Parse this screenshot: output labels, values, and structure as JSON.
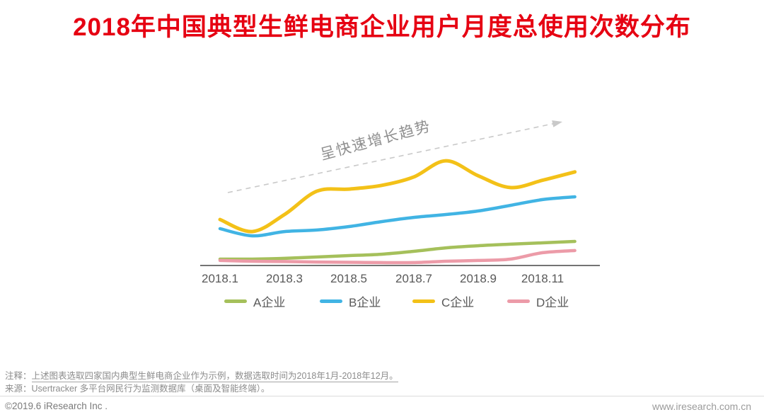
{
  "page": {
    "title": "2018年中国典型生鲜电商企业用户月度总使用次数分布",
    "title_color": "#e60012"
  },
  "chart_data": {
    "type": "line",
    "title": "2018年中国典型生鲜电商企业用户月度总使用次数分布",
    "xlabel": "",
    "ylabel": "",
    "x": [
      "2018.1",
      "2018.2",
      "2018.3",
      "2018.4",
      "2018.5",
      "2018.6",
      "2018.7",
      "2018.8",
      "2018.9",
      "2018.10",
      "2018.11",
      "2018.12"
    ],
    "x_tick_labels": [
      "2018.1",
      "2018.3",
      "2018.5",
      "2018.7",
      "2018.9",
      "2018.11"
    ],
    "ylim": [
      0,
      100
    ],
    "y_axis_shown": false,
    "grid": false,
    "legend_position": "bottom",
    "series": [
      {
        "name": "A企业",
        "color": "#a5c05b",
        "values": [
          4.2,
          4.2,
          4.7,
          5.6,
          6.5,
          7.4,
          9.3,
          11.6,
          13.0,
          14.0,
          14.9,
          15.8
        ]
      },
      {
        "name": "B企业",
        "color": "#41b4e4",
        "values": [
          24.2,
          19.5,
          22.3,
          23.3,
          25.6,
          28.8,
          31.6,
          33.5,
          35.8,
          39.5,
          43.3,
          45.1
        ]
      },
      {
        "name": "C企业",
        "color": "#f3c118",
        "values": [
          30.2,
          22.3,
          33.5,
          48.8,
          50.2,
          52.6,
          58.1,
          68.8,
          59.0,
          51.2,
          56.0,
          61.5
        ]
      },
      {
        "name": "D企业",
        "color": "#ec9ba8",
        "values": [
          3.3,
          2.8,
          2.6,
          2.3,
          2.1,
          1.9,
          1.9,
          2.8,
          3.3,
          4.2,
          8.4,
          9.8
        ]
      }
    ],
    "annotation": {
      "text": "呈快速增长趋势",
      "style": "dashed-gray-arrow-up-right"
    }
  },
  "footer": {
    "note_label": "注释：",
    "note_text": "上述图表选取四家国内典型生鲜电商企业作为示例，数据选取时间为2018年1月-2018年12月。",
    "source_label": "来源：",
    "source_text": "Usertracker 多平台网民行为监测数据库（桌面及智能终端）。",
    "copyright": "©2019.6 iResearch Inc .",
    "website": "www.iresearch.com.cn"
  }
}
